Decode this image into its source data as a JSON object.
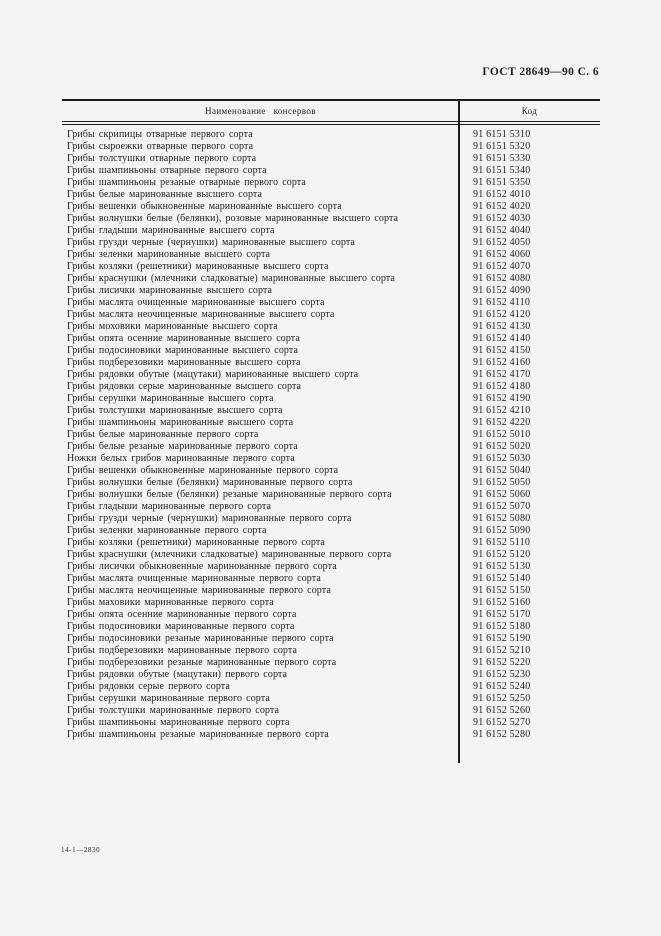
{
  "page": {
    "header": "ГОСТ 28649—90 С. 6",
    "footer": "14-1—2830"
  },
  "table": {
    "columns": [
      "Наименование  консервов",
      "Код"
    ],
    "rows": [
      {
        "name": "Грибы скрипицы отварные первого сорта",
        "code": "91 6151 5310"
      },
      {
        "name": "Грибы сыроежки отварные первого сорта",
        "code": "91 6151 5320"
      },
      {
        "name": "Грибы толстушки отварные первого сорта",
        "code": "91 6151 5330"
      },
      {
        "name": "Грибы шампиньоны отварные первого сорта",
        "code": "91 6151 5340"
      },
      {
        "name": "Грибы шампиньоны резаные отварные первого сорта",
        "code": "91 6151 5350"
      },
      {
        "name": "Грибы белые маринованные высшего сорта",
        "code": "91 6152 4010"
      },
      {
        "name": "Грибы вешенки обыкновенные маринованные высшего сорта",
        "code": "91 6152 4020"
      },
      {
        "name": "Грибы волнушки белые (белянки), розовые маринованные высшего сорта",
        "code": "91 6152 4030"
      },
      {
        "name": "Грибы гладыши маринованные высшего сорта",
        "code": "91 6152 4040"
      },
      {
        "name": "Грибы грузди черные (чернушки) маринованные высшего сорта",
        "code": "91 6152 4050"
      },
      {
        "name": "Грибы зеленки маринованные высшего сорта",
        "code": "91 6152 4060"
      },
      {
        "name": "Грибы козляки (решетники) маринованные высшего сорта",
        "code": "91 6152 4070"
      },
      {
        "name": "Грибы краснушки (млечники сладковатые) маринованные высшего сорта",
        "code": "91 6152 4080"
      },
      {
        "name": "Грибы лисички маринованные высшего сорта",
        "code": "91 6152 4090"
      },
      {
        "name": "Грибы маслята очищенные маринованные высшего сорта",
        "code": "91 6152 4110"
      },
      {
        "name": "Грибы маслята неочищенные маринованные высшего сорта",
        "code": "91 6152 4120"
      },
      {
        "name": "Грибы моховики маринованные высшего сорта",
        "code": "91 6152 4130"
      },
      {
        "name": "Грибы опята осенние маринованные высшего сорта",
        "code": "91 6152 4140"
      },
      {
        "name": "Грибы подосиновики маринованные высшего сорта",
        "code": "91 6152 4150"
      },
      {
        "name": "Грибы подберезовики маринованные высшего сорта",
        "code": "91 6152 4160"
      },
      {
        "name": "Грибы рядовки обутые (мацутаки) маринованные высшего сорта",
        "code": "91 6152 4170"
      },
      {
        "name": "Грибы рядовки серые маринованные высшего сорта",
        "code": "91 6152 4180"
      },
      {
        "name": "Грибы серушки маринованные высшего сорта",
        "code": "91 6152 4190"
      },
      {
        "name": "Грибы толстушки маринованные высшего сорта",
        "code": "91 6152 4210"
      },
      {
        "name": "Грибы шампиньоны маринованные высшего сорта",
        "code": "91 6152 4220"
      },
      {
        "name": "Грибы белые маринованные первого сорта",
        "code": "91 6152 5010"
      },
      {
        "name": "Грибы белые резаные маринованные первого сорта",
        "code": "91 6152 5020"
      },
      {
        "name": "Ножки белых грибов маринованные первого сорта",
        "code": "91 6152 5030"
      },
      {
        "name": "Грибы вешенки обыкновенные маринованные первого сорта",
        "code": "91 6152 5040"
      },
      {
        "name": "Грибы волнушки белые (белянки) маринованные первого сорта",
        "code": "91 6152 5050"
      },
      {
        "name": "Грибы волнушки белые (белянки) резаные маринованные первого сорта",
        "code": "91 6152 5060"
      },
      {
        "name": "Грибы гладыши маринованные первого сорта",
        "code": "91 6152 5070"
      },
      {
        "name": "Грибы грузди черные (чернушки) маринованные первого сорта",
        "code": "91 6152 5080"
      },
      {
        "name": "Грибы зеленки маринованные первого сорта",
        "code": "91 6152 5090"
      },
      {
        "name": "Грибы козляки (решетники) маринованные первого сорта",
        "code": "91 6152 5110"
      },
      {
        "name": "Грибы краснушки (млечники сладковатые) маринованные первого сорта",
        "code": "91 6152 5120"
      },
      {
        "name": "Грибы лисички обыкновенные маринованные первого сорта",
        "code": "91 6152 5130"
      },
      {
        "name": "Грибы маслята очищенные маринованные первого сорта",
        "code": "91 6152 5140"
      },
      {
        "name": "Грибы маслята неочищенные маринованные первого сорта",
        "code": "91 6152 5150"
      },
      {
        "name": "Грибы маховики маринованные первого сорта",
        "code": "91 6152 5160"
      },
      {
        "name": "Грибы опята осенние маринованные первого сорта",
        "code": "91 6152 5170"
      },
      {
        "name": "Грибы подосиновики маринованные первого сорта",
        "code": "91 6152 5180"
      },
      {
        "name": "Грибы подосиновики резаные маринованные первого сорта",
        "code": "91 6152 5190"
      },
      {
        "name": "Грибы подберезовики маринованные первого сорта",
        "code": "91 6152 5210"
      },
      {
        "name": "Грибы подберезовики резаные маринованные первого сорта",
        "code": "91 6152 5220"
      },
      {
        "name": "Грибы рядовки обутые (мацутаки) первого сорта",
        "code": "91 6152 5230"
      },
      {
        "name": "Грибы рядовки серые первого сорта",
        "code": "91 6152 5240"
      },
      {
        "name": "Грибы серушки маринованные первого сорта",
        "code": "91 6152 5250"
      },
      {
        "name": "Грибы толстушки маринованные первого сорта",
        "code": "91 6152 5260"
      },
      {
        "name": "Грибы шампиньоны маринованные первого сорта",
        "code": "91 6152 5270"
      },
      {
        "name": "Грибы шампиньоны резаные маринованные первого сорта",
        "code": "91 6152 5280"
      }
    ]
  },
  "colors": {
    "page_background": "#f4f4f5",
    "ink": "#1e1e1e",
    "rule": "#1c1c1c"
  }
}
